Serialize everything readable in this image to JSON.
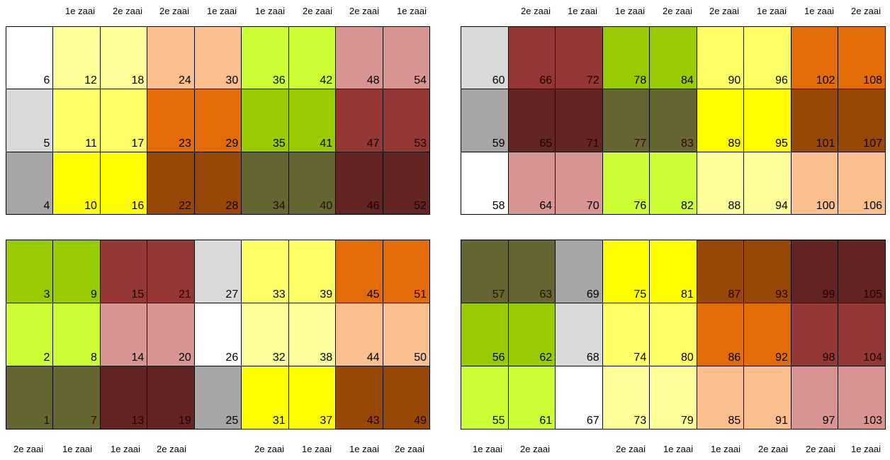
{
  "colors": {
    "1": "#ffffff",
    "2": "#ffff99",
    "3": "#fbc08e",
    "4": "#ccff33",
    "5": "#d99594",
    "6": "#d9d9d9",
    "7": "#ffff66",
    "8": "#e36c09",
    "9": "#99cc00",
    "10": "#953735",
    "11": "#a6a6a6",
    "12": "#ffff00",
    "13": "#974806",
    "14": "#666633",
    "15": "#632423"
  },
  "labels": {
    "top_left": [
      "1e zaai",
      "2e zaai",
      "2e zaai",
      "1e zaai",
      "1e zaai",
      "2e zaai",
      "2e zaai",
      "1e zaai"
    ],
    "top_right": [
      "2e zaai",
      "1e zaai",
      "1e zaai",
      "2e zaai",
      "2e zaai",
      "1e zaai",
      "1e zaai",
      "2e zaai"
    ],
    "bottom_left": [
      "2e zaai",
      "1e zaai",
      "1e zaai",
      "2e zaai",
      "",
      "2e zaai",
      "1e zaai",
      "1e zaai",
      "2e zaai"
    ],
    "bottom_right": [
      "1e zaai",
      "2e zaai",
      "",
      "2e zaai",
      "1e zaai",
      "1e zaai",
      "2e zaai",
      "2e zaai",
      "1e zaai"
    ]
  },
  "blocks": [
    {
      "id": "block-top-left",
      "rows": [
        [
          {
            "n": "6",
            "c": 1
          },
          {
            "n": "12",
            "c": 2
          },
          {
            "n": "18",
            "c": 2
          },
          {
            "n": "24",
            "c": 3
          },
          {
            "n": "30",
            "c": 3
          },
          {
            "n": "36",
            "c": 4
          },
          {
            "n": "42",
            "c": 4
          },
          {
            "n": "48",
            "c": 5
          },
          {
            "n": "54",
            "c": 5
          }
        ],
        [
          {
            "n": "5",
            "c": 6
          },
          {
            "n": "11",
            "c": 7
          },
          {
            "n": "17",
            "c": 7
          },
          {
            "n": "23",
            "c": 8
          },
          {
            "n": "29",
            "c": 8
          },
          {
            "n": "35",
            "c": 9
          },
          {
            "n": "41",
            "c": 9
          },
          {
            "n": "47",
            "c": 10
          },
          {
            "n": "53",
            "c": 10
          }
        ],
        [
          {
            "n": "4",
            "c": 11
          },
          {
            "n": "10",
            "c": 12
          },
          {
            "n": "16",
            "c": 12
          },
          {
            "n": "22",
            "c": 13
          },
          {
            "n": "28",
            "c": 13
          },
          {
            "n": "34",
            "c": 14
          },
          {
            "n": "40",
            "c": 14
          },
          {
            "n": "46",
            "c": 15
          },
          {
            "n": "52",
            "c": 15
          }
        ]
      ]
    },
    {
      "id": "block-top-right",
      "rows": [
        [
          {
            "n": "60",
            "c": 6
          },
          {
            "n": "66",
            "c": 10
          },
          {
            "n": "72",
            "c": 10
          },
          {
            "n": "78",
            "c": 9
          },
          {
            "n": "84",
            "c": 9
          },
          {
            "n": "90",
            "c": 7
          },
          {
            "n": "96",
            "c": 7
          },
          {
            "n": "102",
            "c": 8
          },
          {
            "n": "108",
            "c": 8
          }
        ],
        [
          {
            "n": "59",
            "c": 11
          },
          {
            "n": "65",
            "c": 15
          },
          {
            "n": "71",
            "c": 15
          },
          {
            "n": "77",
            "c": 14
          },
          {
            "n": "83",
            "c": 14
          },
          {
            "n": "89",
            "c": 12
          },
          {
            "n": "95",
            "c": 12
          },
          {
            "n": "101",
            "c": 13
          },
          {
            "n": "107",
            "c": 13
          }
        ],
        [
          {
            "n": "58",
            "c": 1
          },
          {
            "n": "64",
            "c": 5
          },
          {
            "n": "70",
            "c": 5
          },
          {
            "n": "76",
            "c": 4
          },
          {
            "n": "82",
            "c": 4
          },
          {
            "n": "88",
            "c": 2
          },
          {
            "n": "94",
            "c": 2
          },
          {
            "n": "100",
            "c": 3
          },
          {
            "n": "106",
            "c": 3
          }
        ]
      ]
    },
    {
      "id": "block-bottom-left",
      "rows": [
        [
          {
            "n": "3",
            "c": 9
          },
          {
            "n": "9",
            "c": 9
          },
          {
            "n": "15",
            "c": 10
          },
          {
            "n": "21",
            "c": 10
          },
          {
            "n": "27",
            "c": 6
          },
          {
            "n": "33",
            "c": 7
          },
          {
            "n": "39",
            "c": 7
          },
          {
            "n": "45",
            "c": 8
          },
          {
            "n": "51",
            "c": 8
          }
        ],
        [
          {
            "n": "2",
            "c": 4
          },
          {
            "n": "8",
            "c": 4
          },
          {
            "n": "14",
            "c": 5
          },
          {
            "n": "20",
            "c": 5
          },
          {
            "n": "26",
            "c": 1
          },
          {
            "n": "32",
            "c": 2
          },
          {
            "n": "38",
            "c": 2
          },
          {
            "n": "44",
            "c": 3
          },
          {
            "n": "50",
            "c": 3
          }
        ],
        [
          {
            "n": "1",
            "c": 14
          },
          {
            "n": "7",
            "c": 14
          },
          {
            "n": "13",
            "c": 15
          },
          {
            "n": "19",
            "c": 15
          },
          {
            "n": "25",
            "c": 11
          },
          {
            "n": "31",
            "c": 12
          },
          {
            "n": "37",
            "c": 12
          },
          {
            "n": "43",
            "c": 13
          },
          {
            "n": "49",
            "c": 13
          }
        ]
      ]
    },
    {
      "id": "block-bottom-right",
      "rows": [
        [
          {
            "n": "57",
            "c": 14
          },
          {
            "n": "63",
            "c": 14
          },
          {
            "n": "69",
            "c": 11
          },
          {
            "n": "75",
            "c": 12
          },
          {
            "n": "81",
            "c": 12
          },
          {
            "n": "87",
            "c": 13
          },
          {
            "n": "93",
            "c": 13
          },
          {
            "n": "99",
            "c": 15
          },
          {
            "n": "105",
            "c": 15
          }
        ],
        [
          {
            "n": "56",
            "c": 9
          },
          {
            "n": "62",
            "c": 9
          },
          {
            "n": "68",
            "c": 6
          },
          {
            "n": "74",
            "c": 7
          },
          {
            "n": "80",
            "c": 7
          },
          {
            "n": "86",
            "c": 8
          },
          {
            "n": "92",
            "c": 8
          },
          {
            "n": "98",
            "c": 10
          },
          {
            "n": "104",
            "c": 10
          }
        ],
        [
          {
            "n": "55",
            "c": 4
          },
          {
            "n": "61",
            "c": 4
          },
          {
            "n": "67",
            "c": 1
          },
          {
            "n": "73",
            "c": 2
          },
          {
            "n": "79",
            "c": 2
          },
          {
            "n": "85",
            "c": 3
          },
          {
            "n": "91",
            "c": 3
          },
          {
            "n": "97",
            "c": 5
          },
          {
            "n": "103",
            "c": 5
          }
        ]
      ]
    }
  ]
}
